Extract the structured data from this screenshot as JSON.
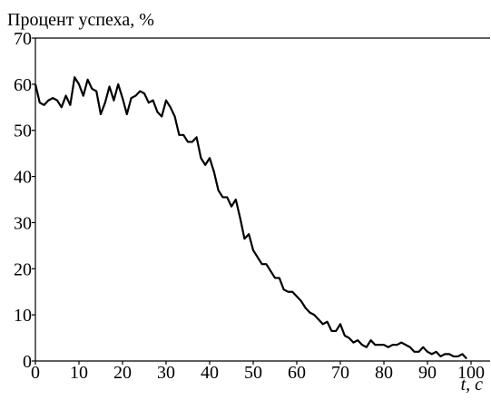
{
  "chart_data": {
    "type": "line",
    "title": "Процент успеха, %",
    "x_label": "t, c",
    "x": [
      0,
      1,
      2,
      3,
      4,
      5,
      6,
      7,
      8,
      9,
      10,
      11,
      12,
      13,
      14,
      15,
      16,
      17,
      18,
      19,
      20,
      21,
      22,
      23,
      24,
      25,
      26,
      27,
      28,
      29,
      30,
      31,
      32,
      33,
      34,
      35,
      36,
      37,
      38,
      39,
      40,
      41,
      42,
      43,
      44,
      45,
      46,
      47,
      48,
      49,
      50,
      51,
      52,
      53,
      54,
      55,
      56,
      57,
      58,
      59,
      60,
      61,
      62,
      63,
      64,
      65,
      66,
      67,
      68,
      69,
      70,
      71,
      72,
      73,
      74,
      75,
      76,
      77,
      78,
      79,
      80,
      81,
      82,
      83,
      84,
      85,
      86,
      87,
      88,
      89,
      90,
      91,
      92,
      93,
      94,
      95,
      96,
      97,
      98,
      99
    ],
    "values": [
      60,
      56,
      55.5,
      56.5,
      57,
      56.5,
      55,
      57.5,
      55.5,
      61.5,
      60,
      57.5,
      61,
      59,
      58.5,
      53.5,
      56,
      59.5,
      56.5,
      60,
      57,
      53.5,
      57,
      57.5,
      58.5,
      58,
      56,
      56.5,
      54,
      53,
      56.5,
      55,
      53,
      49,
      49,
      47.5,
      47.5,
      48.5,
      44,
      42.5,
      44,
      41,
      37,
      35.5,
      35.5,
      33.5,
      35,
      31,
      26.5,
      27.5,
      24,
      22.5,
      21,
      21,
      19.5,
      18,
      18,
      15.5,
      15,
      15,
      14,
      13,
      11.5,
      10.5,
      10,
      9,
      8,
      8.5,
      6.5,
      6.5,
      8,
      5.5,
      5,
      4,
      4.5,
      3.5,
      3,
      4.5,
      3.5,
      3.5,
      3.5,
      3,
      3.5,
      3.5,
      4,
      3.5,
      3,
      2,
      2,
      3,
      2,
      1.5,
      2,
      1,
      1.5,
      1.5,
      1,
      1,
      1.5,
      0.5
    ],
    "color": "#000000",
    "xlim": [
      0,
      100
    ],
    "xticks": [
      0,
      10,
      20,
      30,
      40,
      50,
      60,
      70,
      80,
      90,
      100
    ],
    "ylim": [
      0,
      70
    ],
    "yticks": [
      0,
      10,
      20,
      30,
      40,
      50,
      60,
      70
    ]
  }
}
